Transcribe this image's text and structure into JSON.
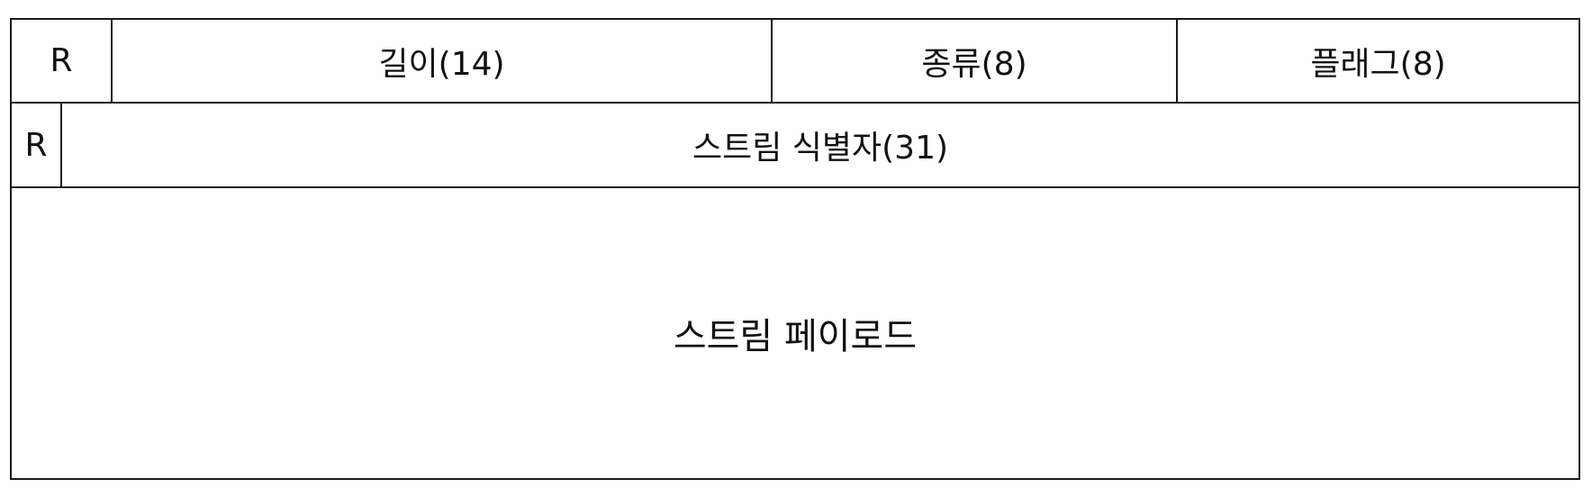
{
  "header_row": {
    "reserved": "R",
    "length": "길이(14)",
    "type": "종류(8)",
    "flags": "플래그(8)"
  },
  "stream_row": {
    "reserved": "R",
    "stream_identifier": "스트림 식별자(31)"
  },
  "payload_row": {
    "payload": "스트림 페이로드"
  }
}
